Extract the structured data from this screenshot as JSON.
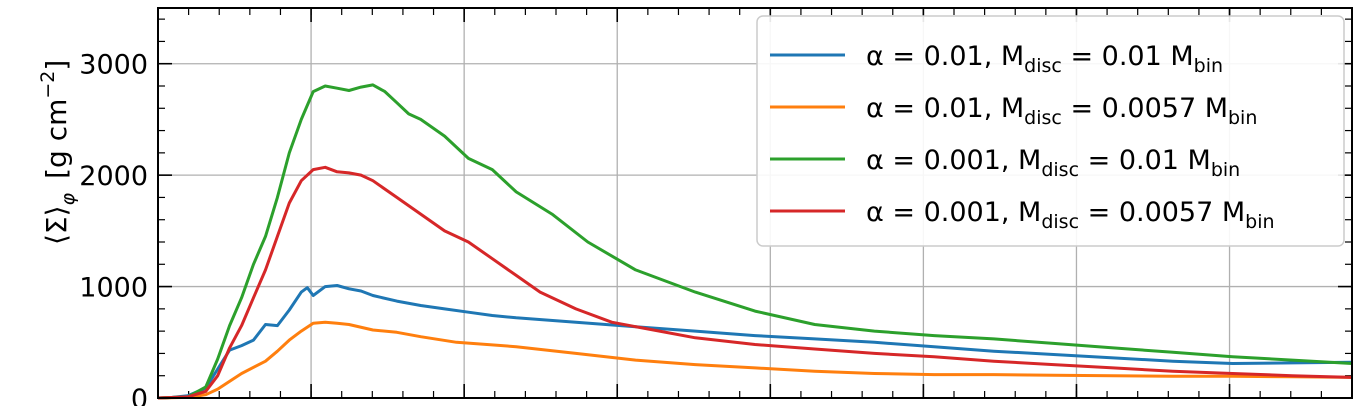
{
  "chart_data": {
    "type": "line",
    "title": "",
    "xlabel": "",
    "ylabel": "⟨Σ⟩ φ  [g cm⁻²]",
    "ylabel_parts": {
      "main": "⟨Σ⟩",
      "sub": "φ",
      "unit_open": "[g cm",
      "unit_exp": "−2",
      "unit_close": "]"
    },
    "ylim": [
      0,
      3500
    ],
    "yticks": [
      0,
      1000,
      2000,
      3000
    ],
    "ytick_labels": [
      "0",
      "1000",
      "2000",
      "3000"
    ],
    "xlim": [
      0,
      1
    ],
    "grid": true,
    "legend_position": "top-right",
    "series": [
      {
        "name": "α = 0.01,  M_disc = 0.01 M_bin",
        "legend": {
          "pre": "α = 0.01,  M",
          "sub1": "disc",
          "mid": " = 0.01 M",
          "sub2": "bin"
        },
        "color": "#1f77b4",
        "x": [
          0,
          0.012,
          0.025,
          0.04,
          0.05,
          0.06,
          0.07,
          0.08,
          0.09,
          0.1,
          0.11,
          0.12,
          0.125,
          0.13,
          0.14,
          0.15,
          0.16,
          0.17,
          0.18,
          0.2,
          0.22,
          0.24,
          0.26,
          0.28,
          0.3,
          0.35,
          0.4,
          0.45,
          0.5,
          0.55,
          0.6,
          0.65,
          0.7,
          0.75,
          0.8,
          0.85,
          0.9,
          0.95,
          1.0
        ],
        "values": [
          0,
          5,
          20,
          90,
          260,
          430,
          470,
          520,
          660,
          650,
          790,
          950,
          990,
          920,
          1000,
          1010,
          980,
          960,
          920,
          870,
          830,
          800,
          770,
          740,
          720,
          680,
          640,
          600,
          560,
          530,
          500,
          460,
          420,
          390,
          360,
          330,
          310,
          315,
          320
        ]
      },
      {
        "name": "α = 0.01,  M_disc = 0.0057 M_bin",
        "legend": {
          "pre": "α = 0.01,  M",
          "sub1": "disc",
          "mid": " = 0.0057 M",
          "sub2": "bin"
        },
        "color": "#ff7f0e",
        "x": [
          0,
          0.025,
          0.04,
          0.05,
          0.07,
          0.09,
          0.1,
          0.11,
          0.12,
          0.13,
          0.14,
          0.15,
          0.16,
          0.18,
          0.2,
          0.22,
          0.25,
          0.3,
          0.35,
          0.4,
          0.45,
          0.5,
          0.55,
          0.6,
          0.65,
          0.7,
          0.75,
          0.8,
          0.85,
          0.9,
          0.95,
          1.0
        ],
        "values": [
          0,
          5,
          30,
          80,
          220,
          330,
          420,
          520,
          600,
          670,
          680,
          670,
          660,
          610,
          590,
          550,
          500,
          460,
          400,
          340,
          300,
          270,
          240,
          220,
          210,
          210,
          205,
          200,
          195,
          195,
          190,
          185
        ]
      },
      {
        "name": "α = 0.001,  M_disc = 0.01 M_bin",
        "legend": {
          "pre": "α = 0.001,  M",
          "sub1": "disc",
          "mid": " = 0.01 M",
          "sub2": "bin"
        },
        "color": "#2ca02c",
        "x": [
          0,
          0.025,
          0.04,
          0.05,
          0.06,
          0.07,
          0.08,
          0.09,
          0.1,
          0.11,
          0.12,
          0.13,
          0.14,
          0.15,
          0.16,
          0.17,
          0.18,
          0.19,
          0.2,
          0.21,
          0.22,
          0.24,
          0.26,
          0.28,
          0.3,
          0.33,
          0.36,
          0.4,
          0.45,
          0.5,
          0.55,
          0.6,
          0.65,
          0.7,
          0.75,
          0.8,
          0.85,
          0.9,
          0.95,
          1.0
        ],
        "values": [
          0,
          10,
          100,
          350,
          650,
          900,
          1200,
          1450,
          1800,
          2200,
          2500,
          2750,
          2800,
          2780,
          2760,
          2790,
          2810,
          2750,
          2650,
          2550,
          2500,
          2350,
          2150,
          2050,
          1850,
          1650,
          1400,
          1150,
          950,
          780,
          660,
          600,
          560,
          530,
          490,
          450,
          410,
          370,
          340,
          310
        ]
      },
      {
        "name": "α = 0.001,  M_disc = 0.0057 M_bin",
        "legend": {
          "pre": "α = 0.001,  M",
          "sub1": "disc",
          "mid": " = 0.0057 M",
          "sub2": "bin"
        },
        "color": "#d62728",
        "x": [
          0,
          0.025,
          0.04,
          0.05,
          0.06,
          0.07,
          0.08,
          0.09,
          0.1,
          0.11,
          0.12,
          0.13,
          0.14,
          0.15,
          0.16,
          0.17,
          0.18,
          0.2,
          0.22,
          0.24,
          0.26,
          0.28,
          0.3,
          0.32,
          0.35,
          0.38,
          0.42,
          0.45,
          0.5,
          0.55,
          0.6,
          0.65,
          0.7,
          0.75,
          0.8,
          0.85,
          0.9,
          0.95,
          1.0
        ],
        "values": [
          0,
          10,
          60,
          200,
          450,
          650,
          900,
          1150,
          1450,
          1750,
          1950,
          2050,
          2070,
          2030,
          2020,
          2000,
          1950,
          1800,
          1650,
          1500,
          1400,
          1250,
          1100,
          950,
          800,
          680,
          600,
          540,
          480,
          440,
          400,
          370,
          330,
          300,
          270,
          240,
          220,
          200,
          185
        ]
      }
    ]
  }
}
